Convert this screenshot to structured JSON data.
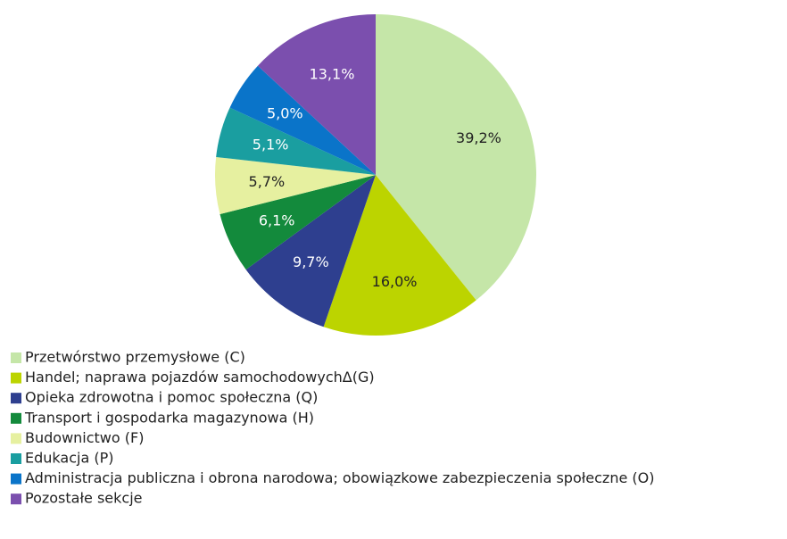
{
  "chart_data": {
    "type": "pie",
    "categories": [
      "Przetwórstwo przemysłowe (C)",
      "Handel; naprawa pojazdów samochodowychΔ(G)",
      "Opieka zdrowotna i pomoc społeczna (Q)",
      "Transport i gospodarka magazynowa (H)",
      "Budownictwo (F)",
      "Edukacja (P)",
      "Administracja publiczna i obrona narodowa; obowiązkowe zabezpieczenia społeczne (O)",
      "Pozostałe sekcje"
    ],
    "values": [
      39.2,
      16.0,
      9.7,
      6.1,
      5.7,
      5.1,
      5.0,
      13.1
    ],
    "value_labels": [
      "39,2%",
      "16,0%",
      "9,7%",
      "6,1%",
      "5,7%",
      "5,1%",
      "5,0%",
      "13,1%"
    ],
    "colors": [
      "#c5e6a8",
      "#bcd400",
      "#2e3f8f",
      "#138a3c",
      "#e6f0a0",
      "#1a9ea0",
      "#0a74c9",
      "#7b4fae"
    ],
    "legend": "bottom-left"
  }
}
